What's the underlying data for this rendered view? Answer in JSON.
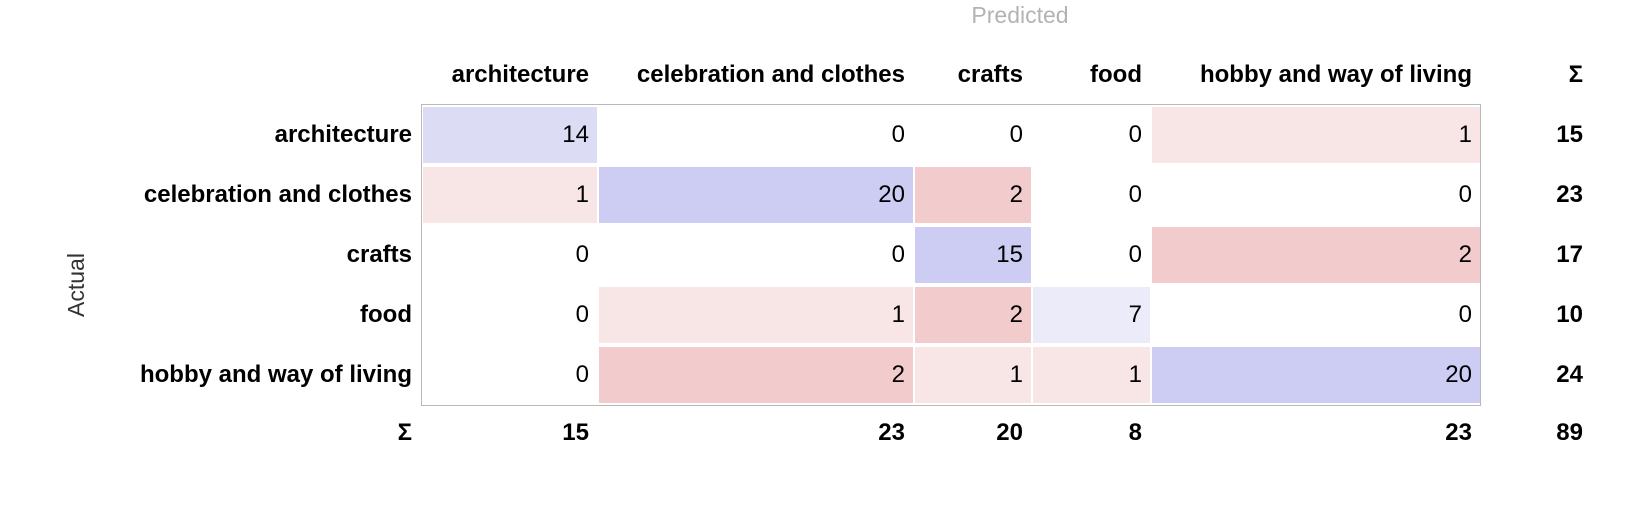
{
  "axis_labels": {
    "predicted": "Predicted",
    "actual": "Actual",
    "sum_symbol": "Σ"
  },
  "columns": [
    "architecture",
    "celebration and clothes",
    "crafts",
    "food",
    "hobby and way of living"
  ],
  "rows": [
    {
      "label": "architecture",
      "values": [
        "14",
        "0",
        "0",
        "0",
        "1"
      ],
      "total": "15"
    },
    {
      "label": "celebration and clothes",
      "values": [
        "1",
        "20",
        "2",
        "0",
        "0"
      ],
      "total": "23"
    },
    {
      "label": "crafts",
      "values": [
        "0",
        "0",
        "15",
        "0",
        "2"
      ],
      "total": "17"
    },
    {
      "label": "food",
      "values": [
        "0",
        "1",
        "2",
        "7",
        "0"
      ],
      "total": "10"
    },
    {
      "label": "hobby and way of living",
      "values": [
        "0",
        "2",
        "1",
        "1",
        "20"
      ],
      "total": "24"
    }
  ],
  "column_totals": [
    "15",
    "23",
    "20",
    "8",
    "23"
  ],
  "grand_total": "89",
  "colors": {
    "correct_strong": "#cdcdf3",
    "correct_medium": "#dcdcf5",
    "correct_light": "#ebebfa",
    "error_strong": "#f2cccc",
    "error_light": "#f8e5e5",
    "none": "#ffffff"
  },
  "cell_shading": [
    [
      "correct_medium",
      "none",
      "none",
      "none",
      "error_light"
    ],
    [
      "error_light",
      "correct_strong",
      "error_strong",
      "none",
      "none"
    ],
    [
      "none",
      "none",
      "correct_strong",
      "none",
      "error_strong"
    ],
    [
      "none",
      "error_light",
      "error_strong",
      "correct_light",
      "none"
    ],
    [
      "none",
      "error_strong",
      "error_light",
      "error_light",
      "correct_strong"
    ]
  ]
}
